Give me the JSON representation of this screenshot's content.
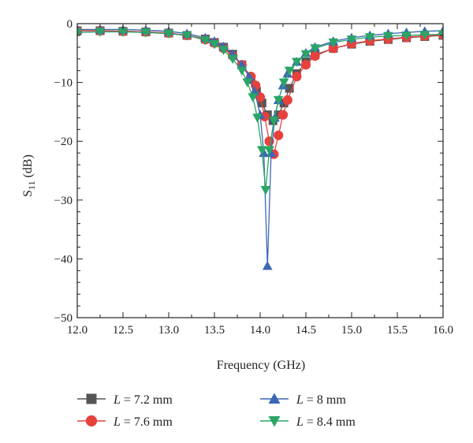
{
  "chart_data": {
    "type": "line",
    "xlabel": "Frequency (GHz)",
    "ylabel": "S11 (dB)",
    "ylabel_main": "S",
    "ylabel_sub": "11",
    "ylabel_unit": " (dB)",
    "xlim": [
      12.0,
      16.0
    ],
    "ylim": [
      -50,
      0
    ],
    "xticks": [
      "12.0",
      "12.5",
      "13.0",
      "13.5",
      "14.0",
      "14.5",
      "15.0",
      "15.5",
      "16.0"
    ],
    "yticks": [
      "0",
      "−10",
      "−20",
      "−30",
      "−40",
      "−50"
    ],
    "grid": false,
    "legend_position": "bottom",
    "series": [
      {
        "name": "L = 7.2 mm",
        "legend_italic": "L",
        "legend_rest": " = 7.2 mm",
        "color": "#555555",
        "marker": "square",
        "x": [
          12.0,
          12.25,
          12.5,
          12.75,
          13.0,
          13.2,
          13.4,
          13.5,
          13.6,
          13.7,
          13.8,
          13.9,
          13.96,
          14.02,
          14.08,
          14.14,
          14.2,
          14.26,
          14.32,
          14.4,
          14.5,
          14.6,
          14.8,
          15.0,
          15.2,
          15.4,
          15.6,
          15.8,
          16.0
        ],
        "y": [
          -1.2,
          -1.2,
          -1.3,
          -1.4,
          -1.6,
          -2.0,
          -2.6,
          -3.2,
          -4.0,
          -5.2,
          -7.0,
          -9.5,
          -11.5,
          -13.5,
          -15.5,
          -16.5,
          -15.5,
          -13.5,
          -11.0,
          -8.5,
          -6.5,
          -5.3,
          -4.2,
          -3.5,
          -3.0,
          -2.7,
          -2.4,
          -2.2,
          -2.0
        ]
      },
      {
        "name": "L = 7.6 mm",
        "legend_italic": "L",
        "legend_rest": " = 7.6 mm",
        "color": "#e8413c",
        "marker": "circle",
        "x": [
          12.0,
          12.25,
          12.5,
          12.75,
          13.0,
          13.2,
          13.4,
          13.5,
          13.6,
          13.7,
          13.8,
          13.9,
          13.95,
          14.0,
          14.05,
          14.1,
          14.15,
          14.2,
          14.25,
          14.3,
          14.4,
          14.5,
          14.6,
          14.8,
          15.0,
          15.2,
          15.4,
          15.6,
          15.8,
          16.0
        ],
        "y": [
          -1.2,
          -1.2,
          -1.3,
          -1.4,
          -1.6,
          -2.0,
          -2.7,
          -3.3,
          -4.2,
          -5.5,
          -7.0,
          -9.0,
          -10.5,
          -12.5,
          -15.8,
          -20.0,
          -22.2,
          -19.0,
          -15.5,
          -13.0,
          -9.0,
          -7.0,
          -5.5,
          -4.2,
          -3.4,
          -2.9,
          -2.6,
          -2.3,
          -2.1,
          -1.9
        ]
      },
      {
        "name": "L = 8 mm",
        "legend_italic": "L",
        "legend_rest": " = 8 mm",
        "color": "#3a68b4",
        "marker": "triangle-up",
        "x": [
          12.0,
          12.25,
          12.5,
          12.75,
          13.0,
          13.2,
          13.4,
          13.5,
          13.6,
          13.7,
          13.8,
          13.88,
          13.94,
          14.0,
          14.04,
          14.08,
          14.12,
          14.16,
          14.2,
          14.25,
          14.3,
          14.4,
          14.5,
          14.6,
          14.8,
          15.0,
          15.2,
          15.4,
          15.6,
          15.8,
          16.0
        ],
        "y": [
          -1.0,
          -1.0,
          -1.0,
          -1.1,
          -1.3,
          -1.7,
          -2.4,
          -3.0,
          -3.9,
          -5.2,
          -7.0,
          -9.0,
          -11.5,
          -15.5,
          -22.0,
          -41.2,
          -22.0,
          -16.0,
          -13.0,
          -10.5,
          -8.5,
          -6.5,
          -5.0,
          -4.0,
          -3.0,
          -2.4,
          -2.0,
          -1.7,
          -1.5,
          -1.3,
          -1.2
        ]
      },
      {
        "name": "L = 8.4 mm",
        "legend_italic": "L",
        "legend_rest": " = 8.4 mm",
        "color": "#2aa566",
        "marker": "triangle-down",
        "x": [
          12.0,
          12.25,
          12.5,
          12.75,
          13.0,
          13.2,
          13.4,
          13.5,
          13.6,
          13.7,
          13.8,
          13.86,
          13.92,
          13.97,
          14.02,
          14.06,
          14.1,
          14.15,
          14.2,
          14.26,
          14.32,
          14.4,
          14.5,
          14.6,
          14.8,
          15.0,
          15.2,
          15.4,
          15.6,
          15.8,
          16.0
        ],
        "y": [
          -1.5,
          -1.4,
          -1.4,
          -1.5,
          -1.7,
          -2.0,
          -2.8,
          -3.5,
          -4.5,
          -6.0,
          -8.0,
          -10.0,
          -12.5,
          -16.0,
          -21.5,
          -28.3,
          -21.5,
          -16.5,
          -13.0,
          -10.0,
          -8.0,
          -6.5,
          -5.2,
          -4.2,
          -3.2,
          -2.7,
          -2.3,
          -2.1,
          -2.0,
          -1.9,
          -1.8
        ]
      }
    ]
  }
}
